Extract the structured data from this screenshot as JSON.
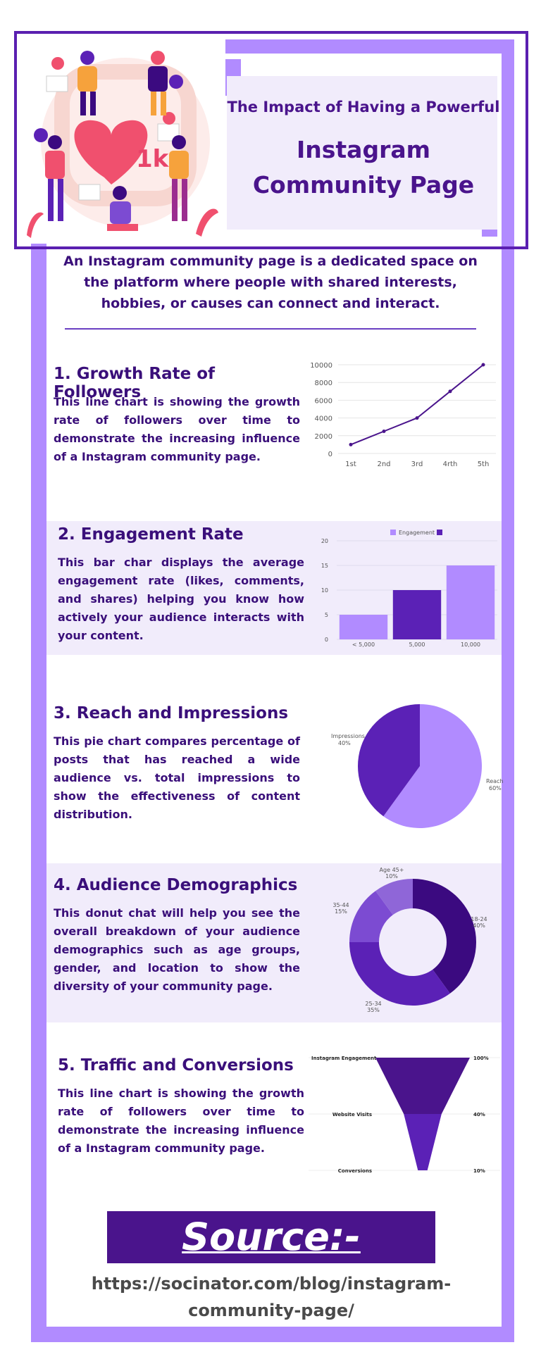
{
  "header": {
    "subtitle": "The Impact of Having a Powerful",
    "title_line1": "Instagram",
    "title_line2": "Community Page",
    "illustration_badge": "1k"
  },
  "intro": "An Instagram community page is a dedicated space on the platform where people with shared interests, hobbies, or causes can connect and interact.",
  "sections": [
    {
      "title": "1. Growth Rate of Followers",
      "text": "This line chart is showing the growth rate of followers over time to demonstrate the increasing influence of a Instagram community page."
    },
    {
      "title": "2. Engagement Rate",
      "text": "This bar char displays the average engagement rate (likes, comments, and shares) helping you know how actively your audience interacts with your content."
    },
    {
      "title": "3. Reach and Impressions",
      "text": "This pie chart compares percentage of posts that has reached a wide audience vs. total impressions to show the effectiveness of content distribution."
    },
    {
      "title": "4. Audience Demographics",
      "text": "This donut chat will help you see the overall breakdown of your audience demographics such as age groups, gender, and location to show the diversity of your community page."
    },
    {
      "title": "5. Traffic and Conversions",
      "text": "This line chart is showing the growth rate of followers over time to demonstrate the increasing influence of a Instagram community page."
    }
  ],
  "source": {
    "label": "Source:-",
    "url": "https://socinator.com/blog/instagram-community-page/"
  },
  "colors": {
    "dark": "#4a148c",
    "mid": "#5b21b6",
    "light": "#b18bff",
    "lavender": "#f1ecfb"
  },
  "chart_data": [
    {
      "type": "line",
      "categories": [
        "1st",
        "2nd",
        "3rd",
        "4rth",
        "5th"
      ],
      "values": [
        1000,
        2500,
        4000,
        7000,
        10000
      ],
      "yticks": [
        0,
        2000,
        4000,
        6000,
        8000,
        10000
      ],
      "ylim": [
        0,
        10000
      ],
      "title": "",
      "xlabel": "",
      "ylabel": ""
    },
    {
      "type": "bar",
      "categories": [
        "< 5,000",
        "5,000",
        "10,000"
      ],
      "values": [
        5,
        10,
        15
      ],
      "bar_colors": [
        "#b18bff",
        "#5b21b6",
        "#b18bff"
      ],
      "yticks": [
        0,
        5,
        10,
        15,
        20
      ],
      "ylim": [
        0,
        20
      ],
      "legend": [
        "Engagement",
        ""
      ],
      "legend_position": "top-right"
    },
    {
      "type": "pie",
      "slices": [
        {
          "label": "Reach",
          "value": 60,
          "pct": "60%",
          "color": "#b18bff"
        },
        {
          "label": "Impressions",
          "value": 40,
          "pct": "40%",
          "color": "#5b21b6"
        }
      ]
    },
    {
      "type": "pie",
      "donut": true,
      "slices": [
        {
          "label": "18-24",
          "value": 40,
          "pct": "40%",
          "color": "#3b0a80"
        },
        {
          "label": "25-34",
          "value": 35,
          "pct": "35%",
          "color": "#5b21b6"
        },
        {
          "label": "35-44",
          "value": 15,
          "pct": "15%",
          "color": "#7c4bd2"
        },
        {
          "label": "Age 45+",
          "value": 10,
          "pct": "10%",
          "color": "#8f66d8"
        }
      ]
    },
    {
      "type": "funnel",
      "stages": [
        {
          "label": "Instagram Engagement",
          "value": 100,
          "pct": "100%"
        },
        {
          "label": "Website Visits",
          "value": 40,
          "pct": "40%"
        },
        {
          "label": "Conversions",
          "value": 10,
          "pct": "10%"
        }
      ],
      "colors": [
        "#4a148c",
        "#5b21b6"
      ]
    }
  ]
}
